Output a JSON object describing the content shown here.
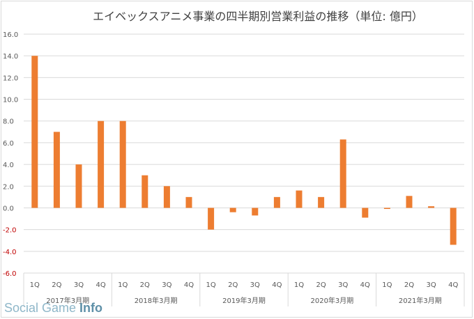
{
  "chart_data": {
    "type": "bar",
    "title": "エイベックスアニメ事業の四半期別営業利益の推移（単位: 億円）",
    "xlabel": "",
    "ylabel": "",
    "ylim": [
      -6,
      16
    ],
    "yticks": [
      "16.0",
      "14.0",
      "12.0",
      "10.0",
      "8.0",
      "6.0",
      "4.0",
      "2.0",
      "0.0",
      "-2.0",
      "-4.0",
      "-6.0"
    ],
    "grid": true,
    "legend": "none",
    "bar_color": "#ED7D31",
    "negative_tick_color": "#C00000",
    "categories": [
      "1Q",
      "2Q",
      "3Q",
      "4Q",
      "1Q",
      "2Q",
      "3Q",
      "4Q",
      "1Q",
      "2Q",
      "3Q",
      "4Q",
      "1Q",
      "2Q",
      "3Q",
      "4Q",
      "1Q",
      "2Q",
      "3Q",
      "4Q"
    ],
    "groups": [
      "2017年3月期",
      "2018年3月期",
      "2019年3月期",
      "2020年3月期",
      "2021年3月期"
    ],
    "values": [
      14.0,
      7.0,
      4.0,
      8.0,
      8.0,
      3.0,
      2.0,
      1.0,
      -2.0,
      -0.4,
      -0.7,
      1.0,
      1.6,
      1.0,
      6.3,
      -0.9,
      -0.1,
      1.1,
      0.15,
      -3.4
    ]
  },
  "watermark": {
    "text_a": "Social Game ",
    "text_b": "Info"
  }
}
